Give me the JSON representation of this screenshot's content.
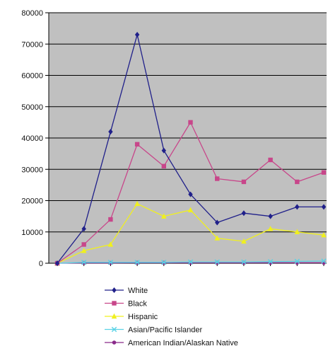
{
  "chart_data": {
    "type": "line",
    "title": "",
    "xlabel": "",
    "ylabel": "",
    "ylim": [
      0,
      80000
    ],
    "yticks": [
      0,
      10000,
      20000,
      30000,
      40000,
      50000,
      60000,
      70000,
      80000
    ],
    "ytick_labels": [
      "0",
      "10000",
      "20000",
      "30000",
      "40000",
      "50000",
      "60000",
      "70000",
      "80000"
    ],
    "x_count": 11,
    "x_labels_shown": false,
    "grid": "horizontal",
    "legend_position": "bottom",
    "plot_background": "#c0c0c0",
    "series": [
      {
        "name": "White",
        "color": "#20208a",
        "marker": "diamond",
        "values": [
          0,
          11000,
          42000,
          73000,
          36000,
          22000,
          13000,
          16000,
          15000,
          18000,
          18000
        ]
      },
      {
        "name": "Black",
        "color": "#c8468a",
        "marker": "square",
        "values": [
          0,
          6000,
          14000,
          38000,
          31000,
          45000,
          27000,
          26000,
          33000,
          26000,
          29000
        ]
      },
      {
        "name": "Hispanic",
        "color": "#f0f01e",
        "marker": "triangle",
        "values": [
          0,
          4000,
          6000,
          19000,
          15000,
          17000,
          8000,
          7000,
          11000,
          10000,
          9000
        ]
      },
      {
        "name": "Asian/Pacific Islander",
        "color": "#5ad2e6",
        "marker": "x",
        "values": [
          0,
          300,
          300,
          300,
          300,
          400,
          400,
          400,
          500,
          600,
          700
        ]
      },
      {
        "name": "American Indian/Alaskan Native",
        "color": "#8a2a8a",
        "marker": "circle",
        "values": [
          0,
          100,
          100,
          150,
          150,
          150,
          150,
          150,
          150,
          150,
          150
        ]
      }
    ]
  }
}
